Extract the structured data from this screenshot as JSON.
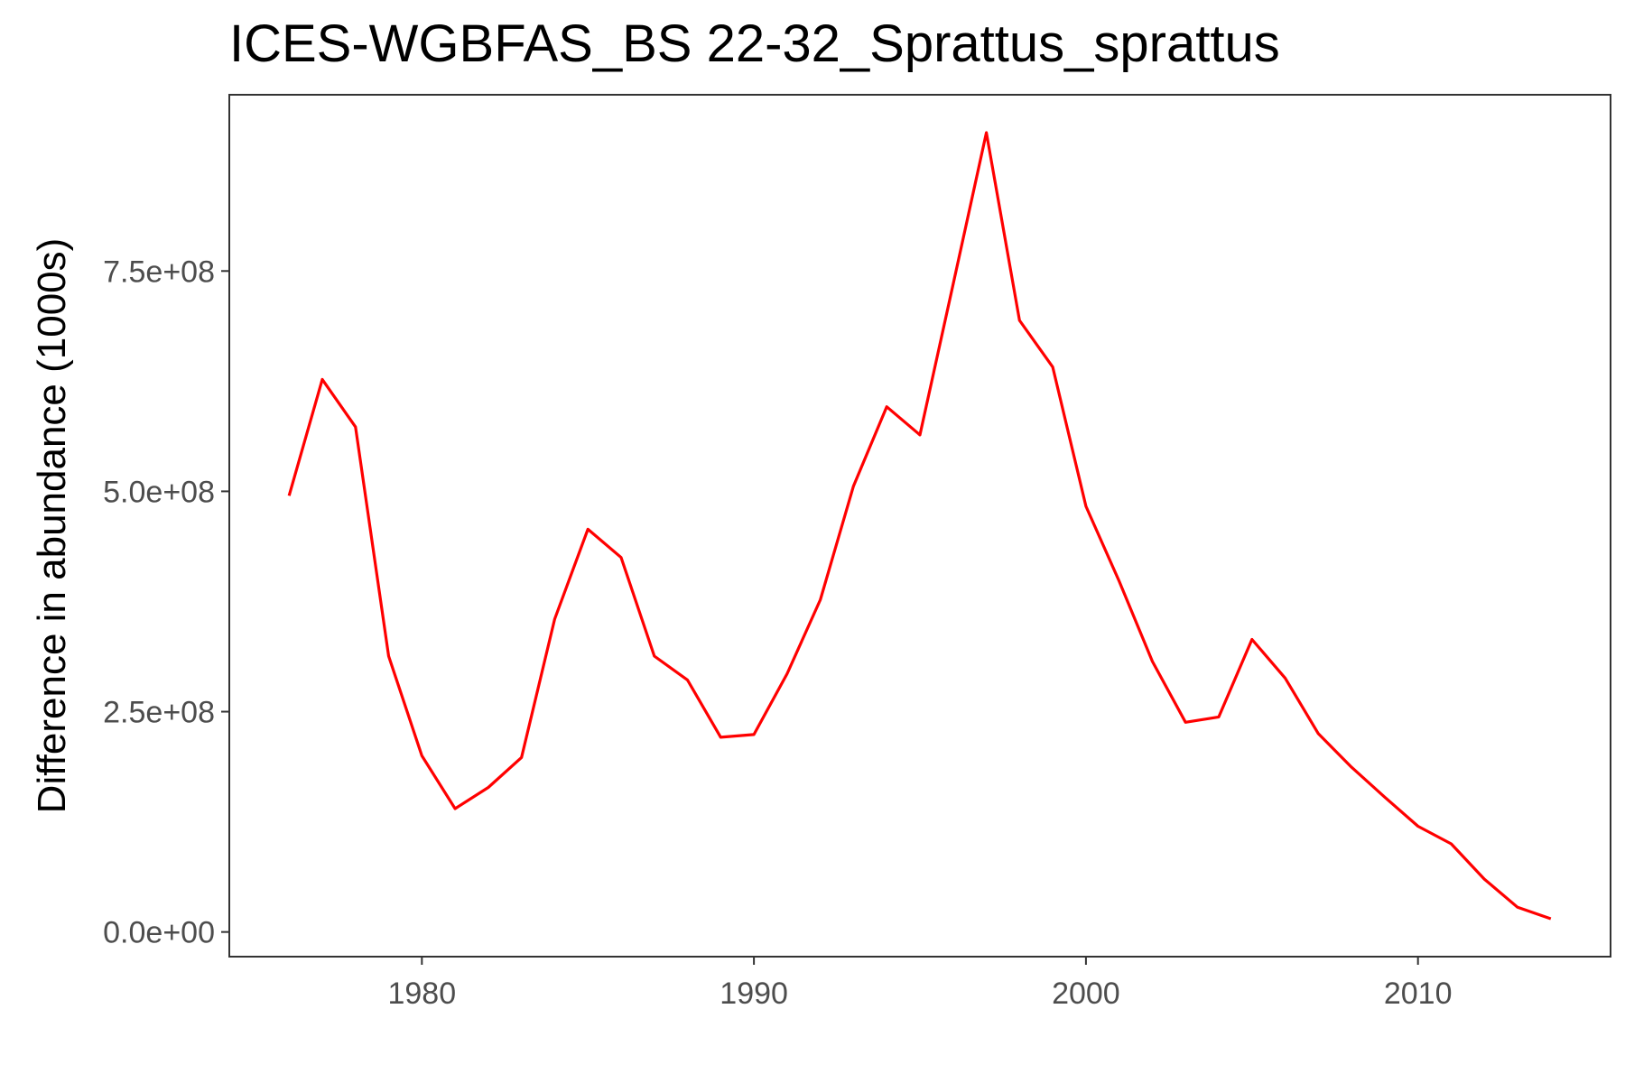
{
  "chart_data": {
    "type": "line",
    "title": "ICES-WGBFAS_BS 22-32_Sprattus_sprattus",
    "xlabel": "",
    "ylabel": "Difference in abundance (1000s)",
    "xlim": [
      1974.2,
      2015.8
    ],
    "ylim": [
      -28000000,
      950000000
    ],
    "x_ticks": [
      1980,
      1990,
      2000,
      2010
    ],
    "x_tick_labels": [
      "1980",
      "1990",
      "2000",
      "2010"
    ],
    "y_ticks": [
      0,
      250000000,
      500000000,
      750000000
    ],
    "y_tick_labels": [
      "0.0e+00",
      "2.5e+08",
      "5.0e+08",
      "7.5e+08"
    ],
    "grid": false,
    "series": [
      {
        "color": "#ff0000",
        "x": [
          1976,
          1977,
          1978,
          1979,
          1980,
          1981,
          1982,
          1983,
          1984,
          1985,
          1986,
          1987,
          1988,
          1989,
          1990,
          1991,
          1992,
          1993,
          1994,
          1995,
          1996,
          1997,
          1998,
          1999,
          2000,
          2001,
          2002,
          2003,
          2004,
          2005,
          2006,
          2007,
          2008,
          2009,
          2010,
          2011,
          2012,
          2013,
          2014
        ],
        "y": [
          495000000,
          627000000,
          573000000,
          313000000,
          200000000,
          140000000,
          164000000,
          198000000,
          355000000,
          457000000,
          425000000,
          313000000,
          286000000,
          221000000,
          224000000,
          293000000,
          377000000,
          506000000,
          596000000,
          564000000,
          735000000,
          907000000,
          694000000,
          641000000,
          483000000,
          398000000,
          307000000,
          238000000,
          244000000,
          332000000,
          288000000,
          225000000,
          187000000,
          153000000,
          120000000,
          100000000,
          60000000,
          28000000,
          15000000
        ]
      }
    ]
  }
}
